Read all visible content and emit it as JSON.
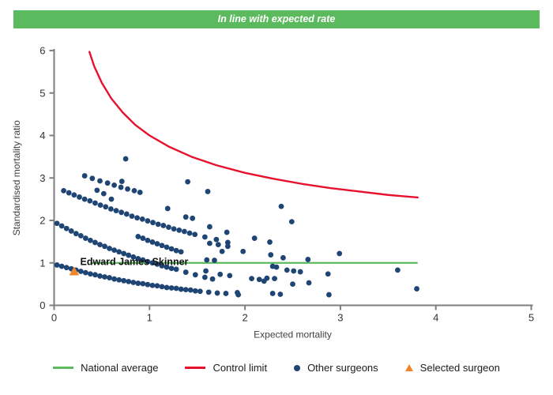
{
  "banner": {
    "title": "In line with expected rate",
    "bg_color": "#5CBA5E",
    "text_color": "#ffffff"
  },
  "chart_data": {
    "type": "scatter",
    "title": "In line with expected rate",
    "xlabel": "Expected mortality",
    "ylabel": "Standardised mortality ratio",
    "xlim": [
      0,
      5
    ],
    "ylim": [
      0,
      6
    ],
    "x_ticks": [
      0,
      1,
      2,
      3,
      4,
      5
    ],
    "y_ticks": [
      0,
      1,
      2,
      3,
      4,
      5,
      6
    ],
    "grid": false,
    "colors": {
      "other_surgeons": "#1F4575",
      "control_limit": "#E8112D",
      "national_average": "#5CBA5E",
      "selected_surgeon": "#F0862B",
      "axis": "#7F7F7F",
      "tick_label": "#333333"
    },
    "national_average": {
      "y": 1,
      "x_start": 0.38,
      "x_end": 3.81
    },
    "control_limit": {
      "points": [
        [
          0.37,
          5.97
        ],
        [
          0.42,
          5.63
        ],
        [
          0.5,
          5.24
        ],
        [
          0.6,
          4.87
        ],
        [
          0.72,
          4.54
        ],
        [
          0.85,
          4.25
        ],
        [
          1.0,
          4.0
        ],
        [
          1.2,
          3.74
        ],
        [
          1.45,
          3.49
        ],
        [
          1.7,
          3.3
        ],
        [
          2.0,
          3.12
        ],
        [
          2.3,
          2.98
        ],
        [
          2.6,
          2.86
        ],
        [
          2.9,
          2.76
        ],
        [
          3.2,
          2.68
        ],
        [
          3.5,
          2.6
        ],
        [
          3.81,
          2.54
        ]
      ]
    },
    "selected_surgeon": {
      "name": "Edward James Skinner",
      "x": 0.21,
      "y": 0.8,
      "label_x": 0.84,
      "label_y": 1.02
    },
    "other_surgeons": {
      "arcs": [
        {
          "points": [
            [
              0.03,
              0.95
            ],
            [
              0.08,
              0.92
            ],
            [
              0.13,
              0.89
            ],
            [
              0.18,
              0.86
            ],
            [
              0.23,
              0.83
            ],
            [
              0.28,
              0.8
            ],
            [
              0.33,
              0.77
            ],
            [
              0.38,
              0.74
            ],
            [
              0.43,
              0.72
            ],
            [
              0.48,
              0.69
            ],
            [
              0.53,
              0.67
            ],
            [
              0.58,
              0.65
            ],
            [
              0.63,
              0.62
            ],
            [
              0.68,
              0.6
            ],
            [
              0.73,
              0.58
            ],
            [
              0.78,
              0.56
            ],
            [
              0.83,
              0.54
            ],
            [
              0.88,
              0.52
            ],
            [
              0.93,
              0.51
            ],
            [
              0.98,
              0.49
            ],
            [
              1.03,
              0.47
            ],
            [
              1.08,
              0.46
            ],
            [
              1.13,
              0.44
            ],
            [
              1.18,
              0.42
            ],
            [
              1.23,
              0.41
            ],
            [
              1.28,
              0.4
            ],
            [
              1.33,
              0.38
            ],
            [
              1.38,
              0.37
            ],
            [
              1.43,
              0.36
            ],
            [
              1.48,
              0.34
            ],
            [
              1.53,
              0.33
            ],
            [
              1.62,
              0.31
            ],
            [
              1.71,
              0.29
            ],
            [
              1.8,
              0.28
            ],
            [
              1.93,
              0.25
            ]
          ]
        },
        {
          "points": [
            [
              0.03,
              1.93
            ],
            [
              0.08,
              1.87
            ],
            [
              0.13,
              1.81
            ],
            [
              0.18,
              1.75
            ],
            [
              0.23,
              1.69
            ],
            [
              0.28,
              1.64
            ],
            [
              0.33,
              1.58
            ],
            [
              0.38,
              1.53
            ],
            [
              0.43,
              1.48
            ],
            [
              0.48,
              1.43
            ],
            [
              0.53,
              1.39
            ],
            [
              0.58,
              1.34
            ],
            [
              0.63,
              1.3
            ],
            [
              0.68,
              1.26
            ],
            [
              0.73,
              1.22
            ],
            [
              0.78,
              1.18
            ],
            [
              0.83,
              1.14
            ],
            [
              0.88,
              1.1
            ],
            [
              0.93,
              1.07
            ],
            [
              0.98,
              1.03
            ],
            [
              1.03,
              1.0
            ],
            [
              1.08,
              0.97
            ],
            [
              1.13,
              0.93
            ],
            [
              1.18,
              0.9
            ],
            [
              1.23,
              0.87
            ],
            [
              1.28,
              0.85
            ],
            [
              1.38,
              0.78
            ],
            [
              1.48,
              0.72
            ],
            [
              1.58,
              0.66
            ],
            [
              1.66,
              0.62
            ]
          ]
        },
        {
          "points": [
            [
              0.88,
              1.62
            ],
            [
              0.93,
              1.58
            ],
            [
              0.98,
              1.53
            ],
            [
              1.03,
              1.49
            ],
            [
              1.08,
              1.45
            ],
            [
              1.13,
              1.41
            ],
            [
              1.18,
              1.37
            ],
            [
              1.23,
              1.33
            ],
            [
              1.28,
              1.29
            ],
            [
              1.33,
              1.26
            ]
          ]
        },
        {
          "points": [
            [
              0.1,
              2.7
            ],
            [
              0.155,
              2.65
            ],
            [
              0.21,
              2.6
            ],
            [
              0.265,
              2.55
            ],
            [
              0.32,
              2.5
            ],
            [
              0.375,
              2.46
            ],
            [
              0.43,
              2.41
            ],
            [
              0.485,
              2.36
            ],
            [
              0.54,
              2.32
            ],
            [
              0.595,
              2.27
            ],
            [
              0.65,
              2.23
            ],
            [
              0.705,
              2.19
            ],
            [
              0.76,
              2.15
            ],
            [
              0.815,
              2.1
            ],
            [
              0.87,
              2.06
            ],
            [
              0.925,
              2.03
            ],
            [
              0.98,
              1.99
            ],
            [
              1.035,
              1.95
            ],
            [
              1.09,
              1.91
            ],
            [
              1.145,
              1.88
            ],
            [
              1.2,
              1.84
            ],
            [
              1.255,
              1.8
            ],
            [
              1.31,
              1.77
            ],
            [
              1.365,
              1.74
            ],
            [
              1.42,
              1.7
            ],
            [
              1.475,
              1.67
            ],
            [
              1.58,
              1.61
            ],
            [
              1.7,
              1.55
            ],
            [
              1.82,
              1.48
            ]
          ]
        },
        {
          "points": [
            [
              0.32,
              3.05
            ],
            [
              0.4,
              2.99
            ],
            [
              0.48,
              2.93
            ],
            [
              0.56,
              2.88
            ],
            [
              0.63,
              2.83
            ],
            [
              0.7,
              2.78
            ],
            [
              0.77,
              2.74
            ],
            [
              0.84,
              2.7
            ],
            [
              0.9,
              2.66
            ]
          ]
        }
      ],
      "singles": [
        [
          0.75,
          3.45
        ],
        [
          0.71,
          2.92
        ],
        [
          0.45,
          2.71
        ],
        [
          0.52,
          2.63
        ],
        [
          0.6,
          2.5
        ],
        [
          1.4,
          2.91
        ],
        [
          1.61,
          2.68
        ],
        [
          1.19,
          2.28
        ],
        [
          1.38,
          2.08
        ],
        [
          1.45,
          2.05
        ],
        [
          2.38,
          2.33
        ],
        [
          2.49,
          1.97
        ],
        [
          1.63,
          1.85
        ],
        [
          1.81,
          1.72
        ],
        [
          2.1,
          1.58
        ],
        [
          2.26,
          1.49
        ],
        [
          1.63,
          1.46
        ],
        [
          1.72,
          1.43
        ],
        [
          1.82,
          1.39
        ],
        [
          1.76,
          1.27
        ],
        [
          1.98,
          1.27
        ],
        [
          2.27,
          1.19
        ],
        [
          2.4,
          1.12
        ],
        [
          2.99,
          1.22
        ],
        [
          2.66,
          1.08
        ],
        [
          1.6,
          1.07
        ],
        [
          1.68,
          1.06
        ],
        [
          2.29,
          0.92
        ],
        [
          2.33,
          0.9
        ],
        [
          1.59,
          0.81
        ],
        [
          1.74,
          0.73
        ],
        [
          1.84,
          0.7
        ],
        [
          2.44,
          0.83
        ],
        [
          2.51,
          0.81
        ],
        [
          2.58,
          0.79
        ],
        [
          2.87,
          0.74
        ],
        [
          2.07,
          0.63
        ],
        [
          2.15,
          0.61
        ],
        [
          2.23,
          0.64
        ],
        [
          2.31,
          0.63
        ],
        [
          2.2,
          0.57
        ],
        [
          2.5,
          0.5
        ],
        [
          2.67,
          0.53
        ],
        [
          2.88,
          0.25
        ],
        [
          1.92,
          0.3
        ],
        [
          2.29,
          0.28
        ],
        [
          2.37,
          0.26
        ],
        [
          3.6,
          0.83
        ],
        [
          3.8,
          0.39
        ]
      ]
    },
    "legend": [
      {
        "label": "National average",
        "type": "line",
        "color": "#5CBA5E"
      },
      {
        "label": "Control limit",
        "type": "line",
        "color": "#E8112D"
      },
      {
        "label": "Other surgeons",
        "type": "dot",
        "color": "#1F4575"
      },
      {
        "label": "Selected surgeon",
        "type": "triangle",
        "color": "#F0862B"
      }
    ]
  }
}
